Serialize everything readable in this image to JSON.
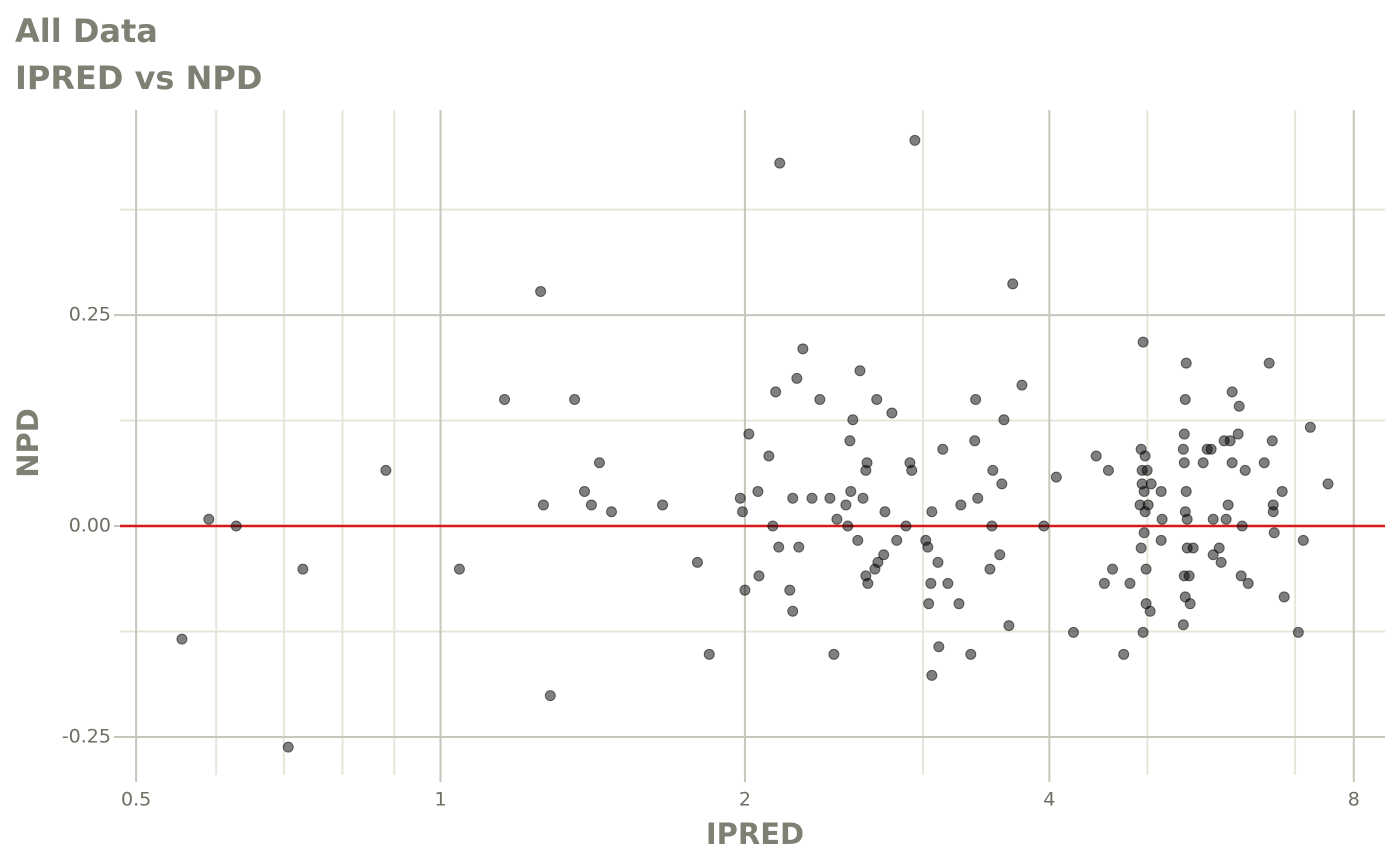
{
  "chart_data": {
    "type": "scatter",
    "title": "All Data",
    "subtitle": "IPRED vs NPD",
    "x_label": "IPRED",
    "y_label": "NPD",
    "xscale": "log",
    "xlim": [
      0.482,
      8.59
    ],
    "ylim": [
      -0.295,
      0.493
    ],
    "xticks": [
      0.5,
      1,
      2,
      4,
      8
    ],
    "xminor": [
      0.6,
      0.7,
      0.8,
      0.9,
      3,
      5,
      7
    ],
    "yticks": [
      -0.25,
      {
        "value": 0,
        "label": "0.00"
      },
      0.25
    ],
    "yminor": [
      -0.125,
      0.125,
      0.375
    ],
    "grid": true,
    "color": "#000000",
    "hline": {
      "value": 0,
      "color": "#d7191c"
    },
    "x": [
      0.555,
      0.59,
      0.628,
      0.707,
      0.731,
      0.883,
      1.044,
      1.157,
      1.256,
      1.264,
      1.284,
      1.357,
      1.388,
      1.41,
      1.436,
      1.476,
      1.658,
      1.795,
      1.844,
      1.979,
      1.989,
      2.0,
      2.018,
      2.06,
      2.065,
      2.112,
      2.131,
      2.145,
      2.16,
      2.165,
      2.215,
      2.23,
      2.23,
      2.251,
      2.261,
      2.282,
      2.33,
      2.372,
      2.427,
      2.449,
      2.466,
      2.517,
      2.528,
      2.54,
      2.545,
      2.557,
      2.586,
      2.599,
      2.617,
      2.634,
      2.634,
      2.641,
      2.646,
      2.689,
      2.7,
      2.707,
      2.743,
      2.751,
      2.795,
      2.826,
      2.886,
      2.912,
      2.924,
      2.945,
      3.019,
      3.033,
      3.039,
      3.054,
      3.061,
      3.061,
      3.104,
      3.11,
      3.138,
      3.175,
      3.256,
      3.27,
      3.345,
      3.375,
      3.382,
      3.398,
      3.494,
      3.51,
      3.517,
      3.573,
      3.59,
      3.607,
      3.648,
      3.68,
      3.758,
      3.95,
      4.064,
      4.226,
      4.45,
      4.534,
      4.576,
      4.619,
      4.738,
      4.806,
      4.918,
      4.93,
      4.93,
      4.941,
      4.941,
      4.952,
      4.952,
      4.964,
      4.964,
      4.975,
      4.975,
      4.986,
      4.986,
      4.998,
      5.009,
      5.032,
      5.044,
      5.16,
      5.16,
      5.171,
      5.427,
      5.427,
      5.439,
      5.439,
      5.439,
      5.451,
      5.451,
      5.451,
      5.463,
      5.463,
      5.475,
      5.475,
      5.5,
      5.512,
      5.55,
      5.678,
      5.73,
      5.782,
      5.809,
      5.809,
      5.889,
      5.915,
      5.956,
      5.983,
      6.01,
      6.038,
      6.065,
      6.065,
      6.149,
      6.163,
      6.191,
      6.205,
      6.248,
      6.291,
      6.525,
      6.599,
      6.645,
      6.66,
      6.66,
      6.675,
      6.797,
      6.828,
      7.052,
      7.132,
      7.247,
      7.545
    ],
    "values": [
      -0.134,
      0.008,
      0,
      -0.262,
      -0.051,
      0.066,
      -0.051,
      0.15,
      0.278,
      0.025,
      -0.201,
      0.15,
      0.041,
      0.025,
      0.075,
      0.017,
      0.025,
      -0.043,
      -0.152,
      0.033,
      0.017,
      -0.076,
      0.109,
      0.041,
      -0.059,
      0.083,
      0,
      0.159,
      -0.025,
      0.43,
      -0.076,
      0.033,
      -0.101,
      0.175,
      -0.025,
      0.21,
      0.033,
      0.15,
      0.033,
      -0.152,
      0.008,
      0.025,
      0,
      0.101,
      0.041,
      0.126,
      -0.017,
      0.184,
      0.033,
      -0.059,
      0.066,
      0.075,
      -0.068,
      -0.051,
      0.15,
      -0.043,
      -0.034,
      0.017,
      0.134,
      -0.017,
      0,
      0.075,
      0.066,
      0.457,
      -0.017,
      -0.025,
      -0.092,
      -0.068,
      0.017,
      -0.177,
      -0.043,
      -0.143,
      0.091,
      -0.068,
      -0.092,
      0.025,
      -0.152,
      0.101,
      0.15,
      0.033,
      -0.051,
      0,
      0.066,
      -0.034,
      0.05,
      0.126,
      -0.118,
      0.287,
      0.167,
      0,
      0.058,
      -0.126,
      0.083,
      -0.068,
      0.066,
      -0.051,
      -0.152,
      -0.068,
      0.025,
      -0.026,
      0.091,
      0.066,
      0.05,
      0.218,
      -0.126,
      -0.008,
      0.041,
      0.017,
      0.083,
      -0.051,
      -0.092,
      0.066,
      0.025,
      -0.101,
      0.05,
      0.041,
      -0.017,
      0.008,
      -0.117,
      0.091,
      0.109,
      0.075,
      -0.059,
      0.15,
      0.017,
      -0.084,
      0.193,
      0.041,
      0.008,
      -0.026,
      -0.059,
      -0.092,
      -0.026,
      0.075,
      0.091,
      0.091,
      0.008,
      -0.034,
      -0.026,
      -0.043,
      0.101,
      0.008,
      0.025,
      0.101,
      0.159,
      0.075,
      0.109,
      0.142,
      -0.059,
      0,
      0.066,
      -0.068,
      0.075,
      0.193,
      0.101,
      0.025,
      0.017,
      -0.008,
      0.041,
      -0.084,
      -0.126,
      -0.017,
      0.117,
      0.05
    ]
  }
}
